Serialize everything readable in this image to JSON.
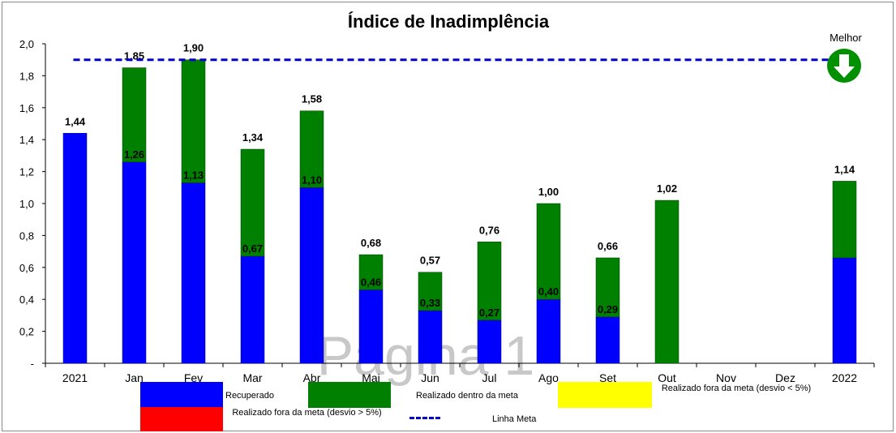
{
  "chart_data": {
    "type": "bar",
    "title": "Índice de Inadimplência",
    "categories": [
      "2021",
      "Jan",
      "Fev",
      "Mar",
      "Abr",
      "Mai",
      "Jun",
      "Jul",
      "Ago",
      "Set",
      "Out",
      "Nov",
      "Dez",
      "2022"
    ],
    "ylim": [
      0,
      2.0
    ],
    "y_ticks": [
      "-",
      "0,2",
      "0,4",
      "0,6",
      "0,8",
      "1,0",
      "1,2",
      "1,4",
      "1,6",
      "1,8",
      "2,0"
    ],
    "stacked": true,
    "series": [
      {
        "name": "Recuperado",
        "color": "#0000ff",
        "values": [
          1.44,
          1.26,
          1.13,
          0.67,
          1.1,
          0.46,
          0.33,
          0.27,
          0.4,
          0.29,
          null,
          null,
          null,
          0.66
        ]
      },
      {
        "name": "Realizado dentro da meta",
        "color": "#008000",
        "values": [
          null,
          0.59,
          0.77,
          0.67,
          0.48,
          0.22,
          0.24,
          0.49,
          0.6,
          0.37,
          1.02,
          null,
          null,
          0.48
        ]
      }
    ],
    "total_labels": [
      "1,44",
      "1,85",
      "1,90",
      "1,34",
      "1,58",
      "0,68",
      "0,57",
      "0,76",
      "1,00",
      "0,66",
      "1,02",
      "",
      "",
      "1,14"
    ],
    "recuperado_labels": [
      "",
      "1,26",
      "1,13",
      "0,67",
      "1,10",
      "0,46",
      "0,33",
      "0,27",
      "0,40",
      "0,29",
      "",
      "",
      "",
      ""
    ],
    "meta_value": 1.9,
    "meta_color": "#0000cc",
    "better_label": "Melhor",
    "better_direction": "down",
    "grid": false,
    "legend": [
      {
        "name": "Recuperado",
        "color": "#0000ff"
      },
      {
        "name": "Realizado dentro da meta",
        "color": "#008000"
      },
      {
        "name": "Realizado fora da meta (desvio < 5%)",
        "color": "#ffff00"
      },
      {
        "name": "Realizado fora da meta (desvio > 5%)",
        "color": "#ff0000"
      },
      {
        "name": "Linha Meta",
        "color": "#0000cc",
        "style": "dashed"
      }
    ],
    "watermark": "Página 1"
  }
}
